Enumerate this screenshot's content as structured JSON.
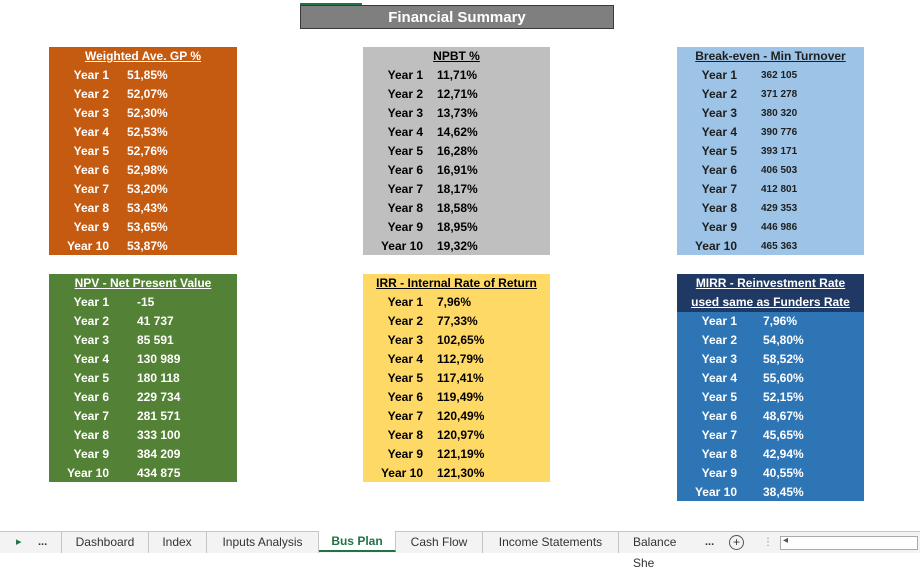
{
  "title": "Financial Summary",
  "panels": [
    {
      "header": "Weighted Ave. GP %",
      "rows": [
        {
          "year": "Year 1",
          "value": "51,85%"
        },
        {
          "year": "Year 2",
          "value": "52,07%"
        },
        {
          "year": "Year 3",
          "value": "52,30%"
        },
        {
          "year": "Year 4",
          "value": "52,53%"
        },
        {
          "year": "Year 5",
          "value": "52,76%"
        },
        {
          "year": "Year 6",
          "value": "52,98%"
        },
        {
          "year": "Year 7",
          "value": "53,20%"
        },
        {
          "year": "Year 8",
          "value": "53,43%"
        },
        {
          "year": "Year 9",
          "value": "53,65%"
        },
        {
          "year": "Year 10",
          "value": "53,87%"
        }
      ]
    },
    {
      "header": "NPBT %",
      "rows": [
        {
          "year": "Year 1",
          "value": "11,71%"
        },
        {
          "year": "Year 2",
          "value": "12,71%"
        },
        {
          "year": "Year 3",
          "value": "13,73%"
        },
        {
          "year": "Year 4",
          "value": "14,62%"
        },
        {
          "year": "Year 5",
          "value": "16,28%"
        },
        {
          "year": "Year 6",
          "value": "16,91%"
        },
        {
          "year": "Year 7",
          "value": "18,17%"
        },
        {
          "year": "Year 8",
          "value": "18,58%"
        },
        {
          "year": "Year 9",
          "value": "18,95%"
        },
        {
          "year": "Year 10",
          "value": "19,32%"
        }
      ]
    },
    {
      "header": "Break-even - Min Turnover",
      "rows": [
        {
          "year": "Year 1",
          "value": "362 105"
        },
        {
          "year": "Year 2",
          "value": "371 278"
        },
        {
          "year": "Year 3",
          "value": "380 320"
        },
        {
          "year": "Year 4",
          "value": "390 776"
        },
        {
          "year": "Year 5",
          "value": "393 171"
        },
        {
          "year": "Year 6",
          "value": "406 503"
        },
        {
          "year": "Year 7",
          "value": "412 801"
        },
        {
          "year": "Year 8",
          "value": "429 353"
        },
        {
          "year": "Year 9",
          "value": "446 986"
        },
        {
          "year": "Year 10",
          "value": "465 363"
        }
      ]
    },
    {
      "header": "NPV - Net Present Value",
      "rows": [
        {
          "year": "Year 1",
          "value": "-15"
        },
        {
          "year": "Year 2",
          "value": "41 737"
        },
        {
          "year": "Year 3",
          "value": "85 591"
        },
        {
          "year": "Year 4",
          "value": "130 989"
        },
        {
          "year": "Year 5",
          "value": "180 118"
        },
        {
          "year": "Year 6",
          "value": "229 734"
        },
        {
          "year": "Year 7",
          "value": "281 571"
        },
        {
          "year": "Year 8",
          "value": "333 100"
        },
        {
          "year": "Year 9",
          "value": "384 209"
        },
        {
          "year": "Year 10",
          "value": "434 875"
        }
      ]
    },
    {
      "header": "IRR - Internal Rate of Return",
      "rows": [
        {
          "year": "Year 1",
          "value": "7,96%"
        },
        {
          "year": "Year 2",
          "value": "77,33%"
        },
        {
          "year": "Year 3",
          "value": "102,65%"
        },
        {
          "year": "Year 4",
          "value": "112,79%"
        },
        {
          "year": "Year 5",
          "value": "117,41%"
        },
        {
          "year": "Year 6",
          "value": "119,49%"
        },
        {
          "year": "Year 7",
          "value": "120,49%"
        },
        {
          "year": "Year 8",
          "value": "120,97%"
        },
        {
          "year": "Year 9",
          "value": "121,19%"
        },
        {
          "year": "Year 10",
          "value": "121,30%"
        }
      ]
    },
    {
      "header": "MIRR - Reinvestment Rate",
      "header2": "used same as Funders Rate",
      "rows": [
        {
          "year": "Year 1",
          "value": "7,96%"
        },
        {
          "year": "Year 2",
          "value": "54,80%"
        },
        {
          "year": "Year 3",
          "value": "58,52%"
        },
        {
          "year": "Year 4",
          "value": "55,60%"
        },
        {
          "year": "Year 5",
          "value": "52,15%"
        },
        {
          "year": "Year 6",
          "value": "48,67%"
        },
        {
          "year": "Year 7",
          "value": "45,65%"
        },
        {
          "year": "Year 8",
          "value": "42,94%"
        },
        {
          "year": "Year 9",
          "value": "40,55%"
        },
        {
          "year": "Year 10",
          "value": "38,45%"
        }
      ]
    }
  ],
  "colors": {
    "gp": "#c55a11",
    "npbt": "#bfbfbf",
    "breakeven": "#9dc3e6",
    "npv": "#538135",
    "irr": "#ffd966",
    "mirr_header": "#1f3864",
    "mirr": "#2e75b6",
    "excel_green": "#217346"
  },
  "tabs": {
    "nav_next": "▸",
    "nav_more": "...",
    "items": [
      "Dashboard",
      "Index",
      "Inputs Analysis",
      "Bus Plan",
      "Cash Flow",
      "Income Statements",
      "Balance She"
    ],
    "overflow": "...",
    "active": "Bus Plan",
    "add": "+",
    "splitter": "⋮",
    "scroll_left": "◂"
  }
}
